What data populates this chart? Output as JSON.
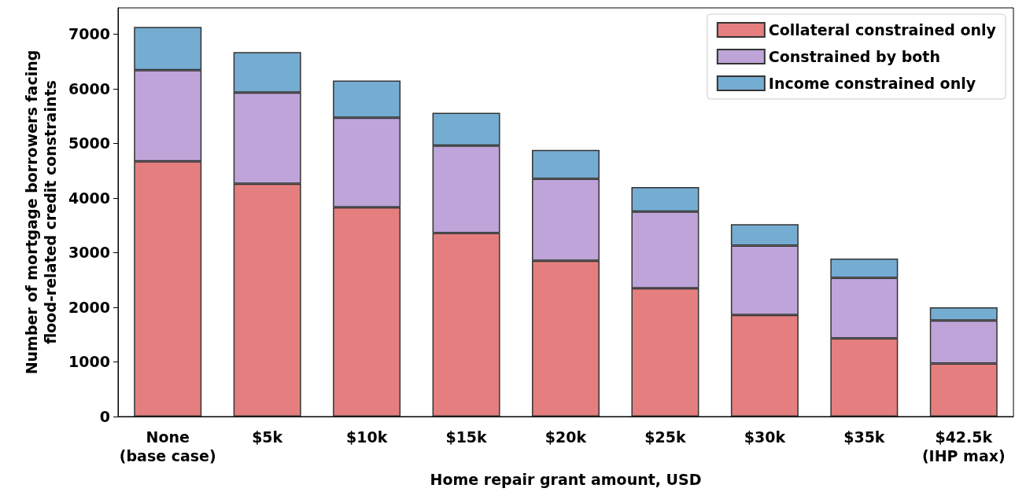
{
  "chart_data": {
    "type": "bar",
    "stacked": true,
    "xlabel": "Home repair grant amount, USD",
    "ylabel": "Number of mortgage borrowers facing\nflood-related credit constraints",
    "categories": [
      "None\n(base case)",
      "$5k",
      "$10k",
      "$15k",
      "$20k",
      "$25k",
      "$30k",
      "$35k",
      "$42.5k\n(IHP max)"
    ],
    "series": [
      {
        "name": "Collateral constrained only",
        "color": "#e57f7f",
        "values": [
          4670,
          4260,
          3830,
          3360,
          2850,
          2350,
          1860,
          1430,
          970
        ]
      },
      {
        "name": "Constrained by both",
        "color": "#bea4d8",
        "values": [
          1670,
          1670,
          1640,
          1600,
          1500,
          1400,
          1270,
          1110,
          790
        ]
      },
      {
        "name": "Income constrained only",
        "color": "#75acd2",
        "values": [
          790,
          740,
          680,
          600,
          530,
          450,
          390,
          350,
          240
        ]
      }
    ],
    "ylim": [
      0,
      7480
    ],
    "yticks": [
      0,
      1000,
      2000,
      3000,
      4000,
      5000,
      6000,
      7000
    ],
    "grid": false,
    "legend": "top right"
  }
}
